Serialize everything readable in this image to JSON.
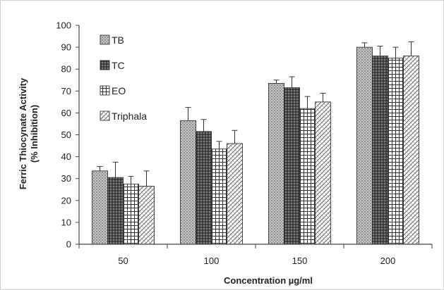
{
  "chart_data": {
    "type": "bar",
    "title": "",
    "xlabel": "Concentration µg/ml",
    "ylabel_line1": "Ferric Thiocynate Activity",
    "ylabel_line2": "(% Inhibition)",
    "categories": [
      "50",
      "100",
      "150",
      "200"
    ],
    "ylim": [
      0,
      100
    ],
    "yticks": [
      0,
      10,
      20,
      30,
      40,
      50,
      60,
      70,
      80,
      90,
      100
    ],
    "grid": false,
    "legend_position": "top-left",
    "series": [
      {
        "name": "TB",
        "values": [
          33.5,
          56.5,
          73.5,
          90
        ],
        "errors": [
          2,
          6,
          1.5,
          2
        ],
        "pattern": "dots-light"
      },
      {
        "name": "TC",
        "values": [
          30.5,
          51.5,
          71.5,
          86
        ],
        "errors": [
          7,
          5.5,
          5,
          4.5
        ],
        "pattern": "dots-dark"
      },
      {
        "name": "EO",
        "values": [
          27.5,
          43.5,
          62,
          85
        ],
        "errors": [
          3.5,
          3.5,
          5.5,
          5
        ],
        "pattern": "grid"
      },
      {
        "name": "Triphala",
        "values": [
          26.5,
          46,
          65,
          86
        ],
        "errors": [
          7,
          6,
          4,
          6.5
        ],
        "pattern": "diagonal"
      }
    ]
  }
}
